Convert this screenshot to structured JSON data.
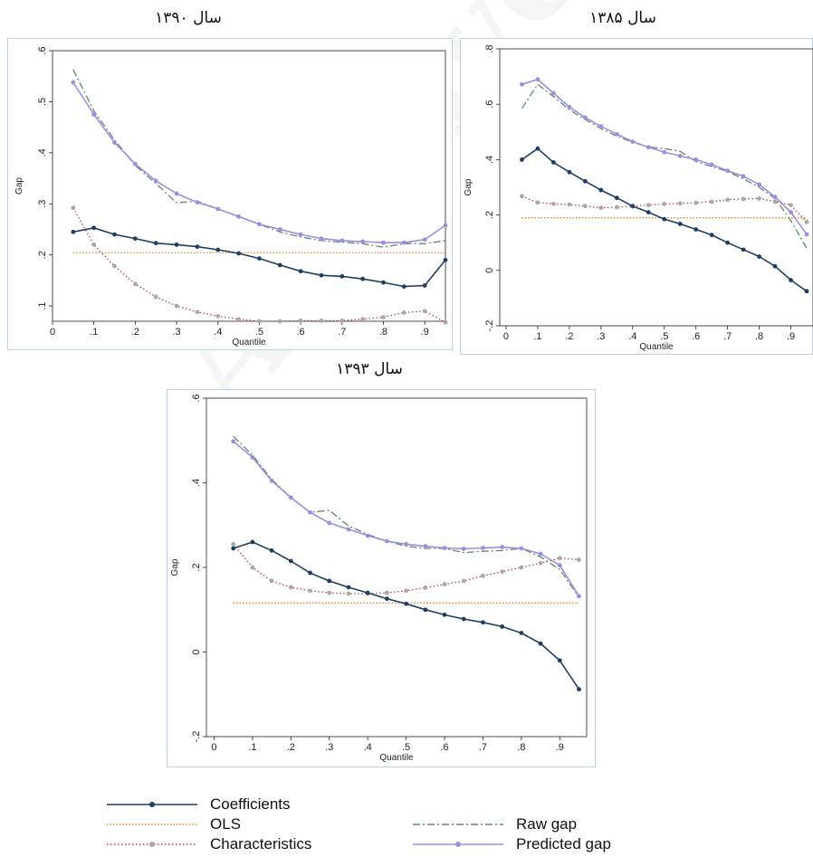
{
  "captions": {
    "chart1390": "سال ۱۳۹۰",
    "chart1385": "سال ۱۳۸۵",
    "chart1393": "سال ۱۳۹۳"
  },
  "watermark": "Archive of SID",
  "colors": {
    "coefficients": "#1f3f62",
    "ols": "#e0862a",
    "characteristics": "#c03a4a",
    "characteristics_marker": "#a8a8a8",
    "raw_gap": "#5d8a70",
    "predicted_gap": "#9a8fdc",
    "frame": "#bcd0e2"
  },
  "legend": {
    "coefficients": "Coefficients",
    "ols": "OLS",
    "characteristics": "Characteristics",
    "raw_gap": "Raw gap",
    "predicted_gap": "Predicted gap"
  },
  "chart_data": [
    {
      "id": "c1390",
      "type": "line",
      "xlabel": "Quantile",
      "ylabel": "Gap",
      "xlim": [
        0,
        0.95
      ],
      "ylim": [
        0.07,
        0.6
      ],
      "xticks": [
        0,
        0.1,
        0.2,
        0.3,
        0.4,
        0.5,
        0.6,
        0.7,
        0.8,
        0.9
      ],
      "xticklabels": [
        "0",
        ".1",
        ".2",
        ".3",
        ".4",
        ".5",
        ".6",
        ".7",
        ".8",
        ".9"
      ],
      "yticks": [
        0.1,
        0.2,
        0.3,
        0.4,
        0.5,
        0.6
      ],
      "yticklabels": [
        ".1",
        ".2",
        ".3",
        ".4",
        ".5",
        ".6"
      ],
      "x": [
        0.05,
        0.1,
        0.15,
        0.2,
        0.25,
        0.3,
        0.35,
        0.4,
        0.45,
        0.5,
        0.55,
        0.6,
        0.65,
        0.7,
        0.75,
        0.8,
        0.85,
        0.9,
        0.95
      ],
      "series": [
        {
          "key": "coefficients",
          "name": "Coefficients",
          "values": [
            0.245,
            0.253,
            0.24,
            0.232,
            0.223,
            0.22,
            0.216,
            0.21,
            0.203,
            0.193,
            0.18,
            0.168,
            0.16,
            0.158,
            0.153,
            0.146,
            0.138,
            0.14,
            0.19
          ]
        },
        {
          "key": "ols",
          "name": "OLS",
          "values": [
            0.204,
            0.204,
            0.204,
            0.204,
            0.204,
            0.204,
            0.204,
            0.204,
            0.204,
            0.204,
            0.204,
            0.204,
            0.204,
            0.204,
            0.204,
            0.204,
            0.204,
            0.204,
            0.204
          ]
        },
        {
          "key": "characteristics",
          "name": "Characteristics",
          "values": [
            0.292,
            0.22,
            0.178,
            0.143,
            0.118,
            0.1,
            0.088,
            0.08,
            0.074,
            0.07,
            0.07,
            0.071,
            0.071,
            0.071,
            0.074,
            0.078,
            0.087,
            0.09,
            0.068
          ]
        },
        {
          "key": "raw_gap",
          "name": "Raw gap",
          "values": [
            0.563,
            0.482,
            0.425,
            0.375,
            0.34,
            0.302,
            0.305,
            0.29,
            0.275,
            0.26,
            0.245,
            0.235,
            0.228,
            0.225,
            0.222,
            0.215,
            0.222,
            0.222,
            0.228
          ]
        },
        {
          "key": "predicted_gap",
          "name": "Predicted gap",
          "values": [
            0.538,
            0.475,
            0.42,
            0.378,
            0.345,
            0.32,
            0.303,
            0.29,
            0.275,
            0.26,
            0.25,
            0.24,
            0.232,
            0.228,
            0.226,
            0.224,
            0.224,
            0.23,
            0.258
          ]
        }
      ]
    },
    {
      "id": "c1385",
      "type": "line",
      "xlabel": "Quantile",
      "ylabel": "Gap",
      "xlim": [
        -0.02,
        0.97
      ],
      "ylim": [
        -0.2,
        0.8
      ],
      "xticks": [
        0,
        0.1,
        0.2,
        0.3,
        0.4,
        0.5,
        0.6,
        0.7,
        0.8,
        0.9
      ],
      "xticklabels": [
        "0",
        ".1",
        ".2",
        ".3",
        ".4",
        ".5",
        ".6",
        ".7",
        ".8",
        ".9"
      ],
      "yticks": [
        -0.2,
        0,
        0.2,
        0.4,
        0.6,
        0.8
      ],
      "yticklabels": [
        "-.2",
        "0",
        ".2",
        ".4",
        ".6",
        ".8"
      ],
      "x": [
        0.05,
        0.1,
        0.15,
        0.2,
        0.25,
        0.3,
        0.35,
        0.4,
        0.45,
        0.5,
        0.55,
        0.6,
        0.65,
        0.7,
        0.75,
        0.8,
        0.85,
        0.9,
        0.95
      ],
      "series": [
        {
          "key": "coefficients",
          "name": "Coefficients",
          "values": [
            0.4,
            0.44,
            0.39,
            0.355,
            0.322,
            0.29,
            0.262,
            0.232,
            0.21,
            0.185,
            0.168,
            0.148,
            0.128,
            0.1,
            0.075,
            0.05,
            0.015,
            -0.035,
            -0.075
          ]
        },
        {
          "key": "ols",
          "name": "OLS",
          "values": [
            0.19,
            0.19,
            0.19,
            0.19,
            0.19,
            0.19,
            0.19,
            0.19,
            0.19,
            0.19,
            0.19,
            0.19,
            0.19,
            0.19,
            0.19,
            0.19,
            0.19,
            0.19,
            0.19
          ]
        },
        {
          "key": "characteristics",
          "name": "Characteristics",
          "values": [
            0.268,
            0.245,
            0.24,
            0.238,
            0.232,
            0.226,
            0.228,
            0.232,
            0.236,
            0.24,
            0.242,
            0.244,
            0.248,
            0.255,
            0.258,
            0.26,
            0.248,
            0.236,
            0.175
          ]
        },
        {
          "key": "raw_gap",
          "name": "Raw gap",
          "values": [
            0.585,
            0.672,
            0.628,
            0.58,
            0.545,
            0.512,
            0.485,
            0.463,
            0.445,
            0.44,
            0.43,
            0.393,
            0.375,
            0.358,
            0.33,
            0.3,
            0.26,
            0.18,
            0.08
          ]
        },
        {
          "key": "predicted_gap",
          "name": "Predicted gap",
          "values": [
            0.672,
            0.69,
            0.64,
            0.59,
            0.552,
            0.52,
            0.492,
            0.465,
            0.445,
            0.427,
            0.413,
            0.4,
            0.382,
            0.36,
            0.34,
            0.31,
            0.265,
            0.21,
            0.13
          ]
        }
      ]
    },
    {
      "id": "c1393",
      "type": "line",
      "xlabel": "Quantile",
      "ylabel": "Gap",
      "xlim": [
        -0.02,
        0.97
      ],
      "ylim": [
        -0.2,
        0.6
      ],
      "xticks": [
        0,
        0.1,
        0.2,
        0.3,
        0.4,
        0.5,
        0.6,
        0.7,
        0.8,
        0.9
      ],
      "xticklabels": [
        "0",
        ".1",
        ".2",
        ".3",
        ".4",
        ".5",
        ".6",
        ".7",
        ".8",
        ".9"
      ],
      "yticks": [
        -0.2,
        0,
        0.2,
        0.4,
        0.6
      ],
      "yticklabels": [
        "-.2",
        "0",
        ".2",
        ".4",
        ".6"
      ],
      "x": [
        0.05,
        0.1,
        0.15,
        0.2,
        0.25,
        0.3,
        0.35,
        0.4,
        0.45,
        0.5,
        0.55,
        0.6,
        0.65,
        0.7,
        0.75,
        0.8,
        0.85,
        0.9,
        0.95
      ],
      "series": [
        {
          "key": "coefficients",
          "name": "Coefficients",
          "values": [
            0.245,
            0.26,
            0.24,
            0.215,
            0.187,
            0.168,
            0.153,
            0.14,
            0.126,
            0.114,
            0.1,
            0.088,
            0.078,
            0.07,
            0.06,
            0.045,
            0.02,
            -0.02,
            -0.088
          ]
        },
        {
          "key": "ols",
          "name": "OLS",
          "values": [
            0.116,
            0.116,
            0.116,
            0.116,
            0.116,
            0.116,
            0.116,
            0.116,
            0.116,
            0.116,
            0.116,
            0.116,
            0.116,
            0.116,
            0.116,
            0.116,
            0.116,
            0.116,
            0.116
          ]
        },
        {
          "key": "characteristics",
          "name": "Characteristics",
          "values": [
            0.255,
            0.2,
            0.168,
            0.153,
            0.145,
            0.14,
            0.138,
            0.138,
            0.14,
            0.145,
            0.152,
            0.16,
            0.168,
            0.18,
            0.19,
            0.2,
            0.21,
            0.222,
            0.218
          ]
        },
        {
          "key": "raw_gap",
          "name": "Raw gap",
          "values": [
            0.51,
            0.465,
            0.408,
            0.365,
            0.33,
            0.335,
            0.298,
            0.278,
            0.262,
            0.25,
            0.245,
            0.245,
            0.235,
            0.238,
            0.24,
            0.245,
            0.225,
            0.195,
            0.13
          ]
        },
        {
          "key": "predicted_gap",
          "name": "Predicted gap",
          "values": [
            0.498,
            0.46,
            0.405,
            0.365,
            0.33,
            0.305,
            0.29,
            0.275,
            0.262,
            0.255,
            0.25,
            0.246,
            0.244,
            0.246,
            0.248,
            0.245,
            0.232,
            0.205,
            0.132
          ]
        }
      ]
    }
  ]
}
